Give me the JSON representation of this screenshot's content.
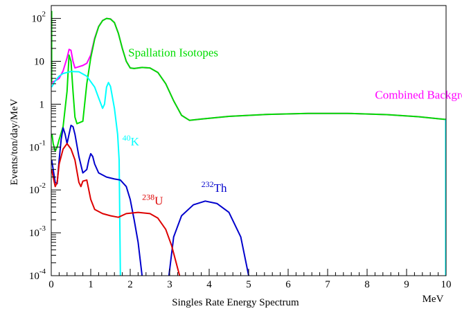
{
  "chart_data": {
    "type": "line",
    "xlabel": "Singles Rate Energy Spectrum",
    "xunit": "MeV",
    "ylabel": "Events/ton/day/MeV",
    "xlim": [
      0,
      10
    ],
    "ylim": [
      0.0001,
      200
    ],
    "yscale": "log",
    "grid": false,
    "x_ticks": [
      {
        "value": 0,
        "label": "0"
      },
      {
        "value": 1,
        "label": "1"
      },
      {
        "value": 2,
        "label": "2"
      },
      {
        "value": 3,
        "label": "3"
      },
      {
        "value": 4,
        "label": "4"
      },
      {
        "value": 5,
        "label": "5"
      },
      {
        "value": 6,
        "label": "6"
      },
      {
        "value": 7,
        "label": "7"
      },
      {
        "value": 8,
        "label": "8"
      },
      {
        "value": 9,
        "label": "9"
      },
      {
        "value": 10,
        "label": "10"
      }
    ],
    "y_ticks": [
      {
        "value": 100,
        "base": "10",
        "exp": "2"
      },
      {
        "value": 10,
        "base": "10",
        "exp": ""
      },
      {
        "value": 1,
        "base": "1",
        "exp": ""
      },
      {
        "value": 0.1,
        "base": "10",
        "exp": "-1"
      },
      {
        "value": 0.01,
        "base": "10",
        "exp": "-2"
      },
      {
        "value": 0.001,
        "base": "10",
        "exp": "-3"
      },
      {
        "value": 0.0001,
        "base": "10",
        "exp": "-4"
      }
    ],
    "series": [
      {
        "name": "Combined Background",
        "color": "#ff00ff",
        "label": {
          "sup": "",
          "text": "Combined Background",
          "x": 8.2,
          "y": 1.35
        },
        "points": [
          [
            0.01,
            3.2
          ],
          [
            0.1,
            3.5
          ],
          [
            0.2,
            4
          ],
          [
            0.3,
            6
          ],
          [
            0.4,
            12
          ],
          [
            0.45,
            19
          ],
          [
            0.5,
            18
          ],
          [
            0.55,
            10
          ],
          [
            0.6,
            7
          ],
          [
            0.7,
            7.5
          ],
          [
            0.8,
            8
          ],
          [
            0.9,
            9
          ],
          [
            1.0,
            14
          ],
          [
            1.1,
            35
          ],
          [
            1.2,
            65
          ],
          [
            1.3,
            90
          ],
          [
            1.4,
            100
          ],
          [
            1.5,
            98
          ],
          [
            1.6,
            80
          ],
          [
            1.7,
            45
          ],
          [
            1.8,
            20
          ],
          [
            1.9,
            10
          ],
          [
            2.0,
            7
          ],
          [
            2.1,
            6.8
          ],
          [
            2.3,
            7.2
          ],
          [
            2.5,
            7
          ],
          [
            2.7,
            5.5
          ],
          [
            2.9,
            3
          ],
          [
            3.1,
            1.2
          ],
          [
            3.3,
            0.55
          ],
          [
            3.5,
            0.42
          ],
          [
            3.8,
            0.45
          ],
          [
            4.5,
            0.52
          ],
          [
            5.5,
            0.58
          ],
          [
            6.5,
            0.61
          ],
          [
            7.5,
            0.61
          ],
          [
            8.5,
            0.57
          ],
          [
            9.3,
            0.51
          ],
          [
            10,
            0.44
          ]
        ]
      },
      {
        "name": "Spallation Isotopes",
        "color": "#00dd00",
        "label": {
          "sup": "",
          "text": "Spallation Isotopes",
          "x": 1.95,
          "y": 13
        },
        "points": [
          [
            0.02,
            0.2
          ],
          [
            0.05,
            0.12
          ],
          [
            0.1,
            0.08
          ],
          [
            0.15,
            0.1
          ],
          [
            0.2,
            0.15
          ],
          [
            0.3,
            0.3
          ],
          [
            0.4,
            2
          ],
          [
            0.45,
            14
          ],
          [
            0.5,
            10
          ],
          [
            0.55,
            2
          ],
          [
            0.6,
            0.5
          ],
          [
            0.65,
            0.35
          ],
          [
            0.8,
            0.4
          ],
          [
            0.9,
            3
          ],
          [
            1.0,
            12
          ],
          [
            1.1,
            33
          ],
          [
            1.2,
            64
          ],
          [
            1.3,
            89
          ],
          [
            1.4,
            100
          ],
          [
            1.5,
            97
          ],
          [
            1.6,
            80
          ],
          [
            1.7,
            45
          ],
          [
            1.8,
            20
          ],
          [
            1.9,
            10
          ],
          [
            2.0,
            7
          ],
          [
            2.1,
            6.8
          ],
          [
            2.3,
            7.2
          ],
          [
            2.5,
            7
          ],
          [
            2.7,
            5.5
          ],
          [
            2.9,
            3
          ],
          [
            3.1,
            1.2
          ],
          [
            3.3,
            0.55
          ],
          [
            3.5,
            0.42
          ],
          [
            3.8,
            0.45
          ],
          [
            4.5,
            0.52
          ],
          [
            5.5,
            0.58
          ],
          [
            6.5,
            0.61
          ],
          [
            7.5,
            0.61
          ],
          [
            8.5,
            0.57
          ],
          [
            9.3,
            0.51
          ],
          [
            10,
            0.44
          ]
        ]
      },
      {
        "name": "40K",
        "color": "#00ffff",
        "label": {
          "sup": "40",
          "text": "K",
          "x": 1.8,
          "y": 0.11
        },
        "points": [
          [
            0.01,
            2.5
          ],
          [
            0.1,
            3.5
          ],
          [
            0.2,
            4.5
          ],
          [
            0.3,
            5.2
          ],
          [
            0.5,
            5.8
          ],
          [
            0.7,
            5.7
          ],
          [
            0.9,
            4.5
          ],
          [
            1.1,
            2.5
          ],
          [
            1.2,
            1.4
          ],
          [
            1.3,
            0.8
          ],
          [
            1.35,
            1
          ],
          [
            1.4,
            2.5
          ],
          [
            1.45,
            3.2
          ],
          [
            1.5,
            2.6
          ],
          [
            1.6,
            0.8
          ],
          [
            1.68,
            0.2
          ],
          [
            1.72,
            0.05
          ],
          [
            1.75,
            0.0001
          ]
        ]
      },
      {
        "name": "232Th",
        "color": "#0000cc",
        "label": {
          "sup": "232",
          "text": "Th",
          "x": 3.8,
          "y": 0.009
        },
        "points": [
          [
            0.01,
            0.05
          ],
          [
            0.05,
            0.03
          ],
          [
            0.1,
            0.015
          ],
          [
            0.15,
            0.014
          ],
          [
            0.2,
            0.05
          ],
          [
            0.25,
            0.15
          ],
          [
            0.3,
            0.28
          ],
          [
            0.35,
            0.2
          ],
          [
            0.4,
            0.12
          ],
          [
            0.45,
            0.2
          ],
          [
            0.5,
            0.32
          ],
          [
            0.55,
            0.3
          ],
          [
            0.6,
            0.2
          ],
          [
            0.7,
            0.06
          ],
          [
            0.8,
            0.025
          ],
          [
            0.9,
            0.03
          ],
          [
            0.95,
            0.05
          ],
          [
            1.0,
            0.07
          ],
          [
            1.05,
            0.06
          ],
          [
            1.1,
            0.04
          ],
          [
            1.2,
            0.025
          ],
          [
            1.4,
            0.02
          ],
          [
            1.6,
            0.018
          ],
          [
            1.75,
            0.017
          ],
          [
            1.9,
            0.012
          ],
          [
            2.0,
            0.006
          ],
          [
            2.1,
            0.002
          ],
          [
            2.2,
            0.0006
          ],
          [
            2.3,
            0.0001
          ]
        ],
        "points2": [
          [
            2.98,
            0.0001
          ],
          [
            3.1,
            0.0008
          ],
          [
            3.3,
            0.0025
          ],
          [
            3.6,
            0.0045
          ],
          [
            3.9,
            0.0055
          ],
          [
            4.2,
            0.0048
          ],
          [
            4.5,
            0.003
          ],
          [
            4.8,
            0.0008
          ],
          [
            5.0,
            0.0001
          ]
        ]
      },
      {
        "name": "238U",
        "color": "#dd0000",
        "label": {
          "sup": "238",
          "text": "U",
          "x": 2.3,
          "y": 0.0045
        },
        "points": [
          [
            0.01,
            0.03
          ],
          [
            0.05,
            0.02
          ],
          [
            0.1,
            0.012
          ],
          [
            0.15,
            0.015
          ],
          [
            0.2,
            0.04
          ],
          [
            0.3,
            0.09
          ],
          [
            0.4,
            0.12
          ],
          [
            0.5,
            0.09
          ],
          [
            0.6,
            0.05
          ],
          [
            0.7,
            0.015
          ],
          [
            0.75,
            0.012
          ],
          [
            0.8,
            0.016
          ],
          [
            0.9,
            0.017
          ],
          [
            1.0,
            0.006
          ],
          [
            1.1,
            0.0035
          ],
          [
            1.3,
            0.0028
          ],
          [
            1.5,
            0.0025
          ],
          [
            1.7,
            0.0023
          ],
          [
            1.9,
            0.0028
          ],
          [
            2.2,
            0.003
          ],
          [
            2.5,
            0.0028
          ],
          [
            2.7,
            0.0022
          ],
          [
            2.9,
            0.0012
          ],
          [
            3.05,
            0.0005
          ],
          [
            3.2,
            0.00015
          ],
          [
            3.25,
            0.0001
          ]
        ]
      }
    ]
  }
}
